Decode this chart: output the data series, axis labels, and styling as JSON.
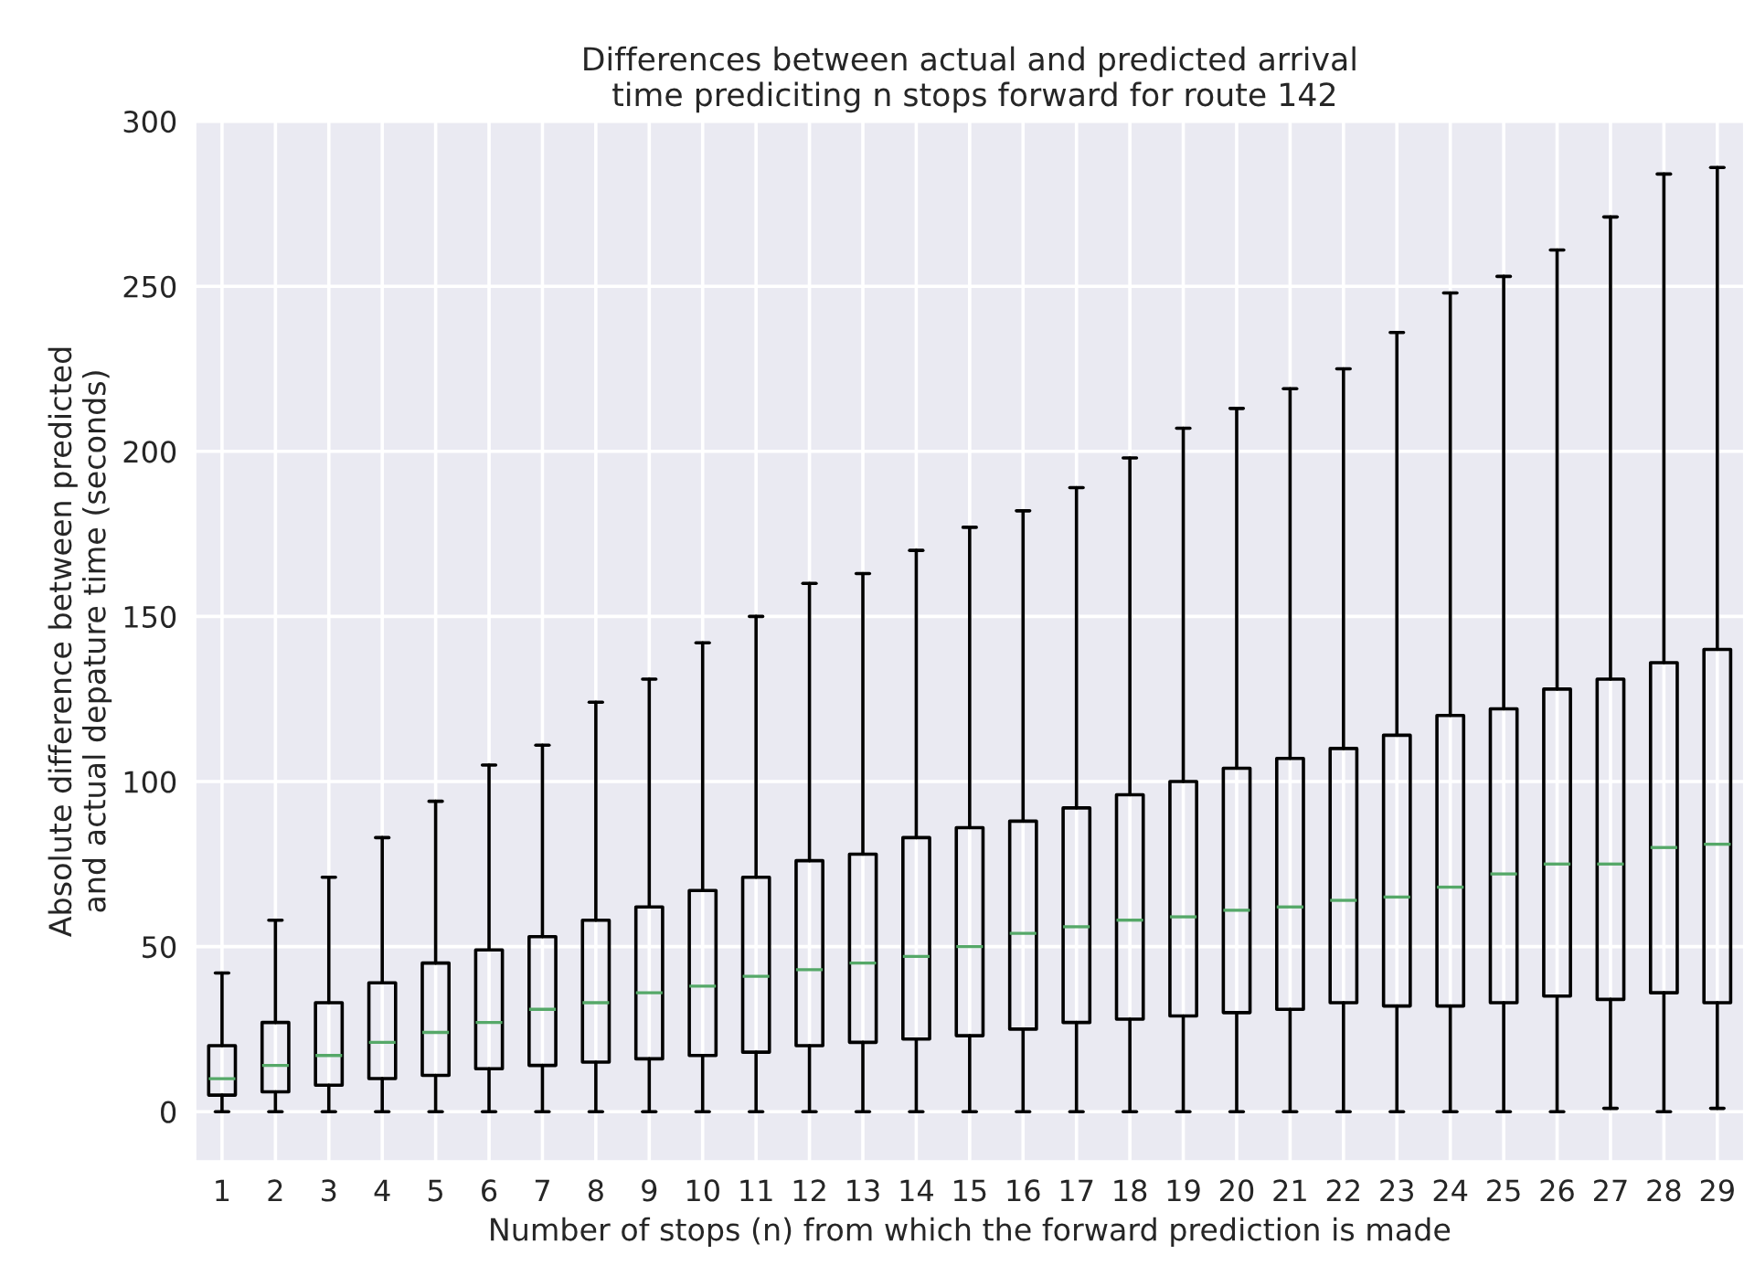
{
  "chart_data": {
    "type": "box",
    "title": "Differences between actual and predicted arrival\n time prediciting n stops forward for route 142",
    "xlabel": "Number of stops (n) from which the forward prediction is made",
    "ylabel": "Absolute difference between predicted\nand actual depature time (seconds)",
    "categories": [
      "1",
      "2",
      "3",
      "4",
      "5",
      "6",
      "7",
      "8",
      "9",
      "10",
      "11",
      "12",
      "13",
      "14",
      "15",
      "16",
      "17",
      "18",
      "19",
      "20",
      "21",
      "22",
      "23",
      "24",
      "25",
      "26",
      "27",
      "28",
      "29"
    ],
    "color": "#000000",
    "boxes": [
      {
        "low": 0,
        "q1": 5,
        "median": 10,
        "q3": 20,
        "high": 42
      },
      {
        "low": 0,
        "q1": 6,
        "median": 14,
        "q3": 27,
        "high": 58
      },
      {
        "low": 0,
        "q1": 8,
        "median": 17,
        "q3": 33,
        "high": 71
      },
      {
        "low": 0,
        "q1": 10,
        "median": 21,
        "q3": 39,
        "high": 83
      },
      {
        "low": 0,
        "q1": 11,
        "median": 24,
        "q3": 45,
        "high": 94
      },
      {
        "low": 0,
        "q1": 13,
        "median": 27,
        "q3": 49,
        "high": 105
      },
      {
        "low": 0,
        "q1": 14,
        "median": 31,
        "q3": 53,
        "high": 111
      },
      {
        "low": 0,
        "q1": 15,
        "median": 33,
        "q3": 58,
        "high": 124
      },
      {
        "low": 0,
        "q1": 16,
        "median": 36,
        "q3": 62,
        "high": 131
      },
      {
        "low": 0,
        "q1": 17,
        "median": 38,
        "q3": 67,
        "high": 142
      },
      {
        "low": 0,
        "q1": 18,
        "median": 41,
        "q3": 71,
        "high": 150
      },
      {
        "low": 0,
        "q1": 20,
        "median": 43,
        "q3": 76,
        "high": 160
      },
      {
        "low": 0,
        "q1": 21,
        "median": 45,
        "q3": 78,
        "high": 163
      },
      {
        "low": 0,
        "q1": 22,
        "median": 47,
        "q3": 83,
        "high": 170
      },
      {
        "low": 0,
        "q1": 23,
        "median": 50,
        "q3": 86,
        "high": 177
      },
      {
        "low": 0,
        "q1": 25,
        "median": 54,
        "q3": 88,
        "high": 182
      },
      {
        "low": 0,
        "q1": 27,
        "median": 56,
        "q3": 92,
        "high": 189
      },
      {
        "low": 0,
        "q1": 28,
        "median": 58,
        "q3": 96,
        "high": 198
      },
      {
        "low": 0,
        "q1": 29,
        "median": 59,
        "q3": 100,
        "high": 207
      },
      {
        "low": 0,
        "q1": 30,
        "median": 61,
        "q3": 104,
        "high": 213
      },
      {
        "low": 0,
        "q1": 31,
        "median": 62,
        "q3": 107,
        "high": 219
      },
      {
        "low": 0,
        "q1": 33,
        "median": 64,
        "q3": 110,
        "high": 225
      },
      {
        "low": 0,
        "q1": 32,
        "median": 65,
        "q3": 114,
        "high": 236
      },
      {
        "low": 0,
        "q1": 32,
        "median": 68,
        "q3": 120,
        "high": 248
      },
      {
        "low": 0,
        "q1": 33,
        "median": 72,
        "q3": 122,
        "high": 253
      },
      {
        "low": 0,
        "q1": 35,
        "median": 75,
        "q3": 128,
        "high": 261
      },
      {
        "low": 1,
        "q1": 34,
        "median": 75,
        "q3": 131,
        "high": 271
      },
      {
        "low": 0,
        "q1": 36,
        "median": 80,
        "q3": 136,
        "high": 284
      },
      {
        "low": 1,
        "q1": 33,
        "median": 81,
        "q3": 140,
        "high": 286
      }
    ],
    "ylim": [
      -15,
      300
    ],
    "yticks": [
      0,
      50,
      100,
      150,
      200,
      250,
      300
    ],
    "grid": true
  }
}
